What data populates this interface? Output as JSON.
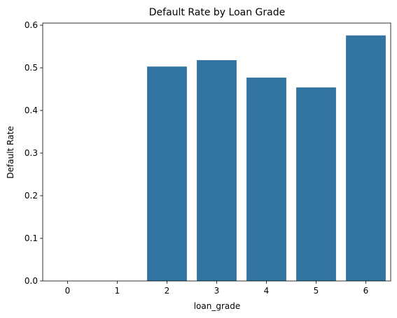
{
  "chart_data": {
    "type": "bar",
    "title": "Default Rate by Loan Grade",
    "xlabel": "loan_grade",
    "ylabel": "Default Rate",
    "categories": [
      "0",
      "1",
      "2",
      "3",
      "4",
      "5",
      "6"
    ],
    "values": [
      0.0,
      0.0,
      0.503,
      0.518,
      0.477,
      0.454,
      0.576
    ],
    "ylim": [
      0,
      0.605
    ],
    "yticks": [
      "0.0",
      "0.1",
      "0.2",
      "0.3",
      "0.4",
      "0.5",
      "0.6"
    ],
    "grid": false,
    "bar_color": "#3274a1"
  }
}
